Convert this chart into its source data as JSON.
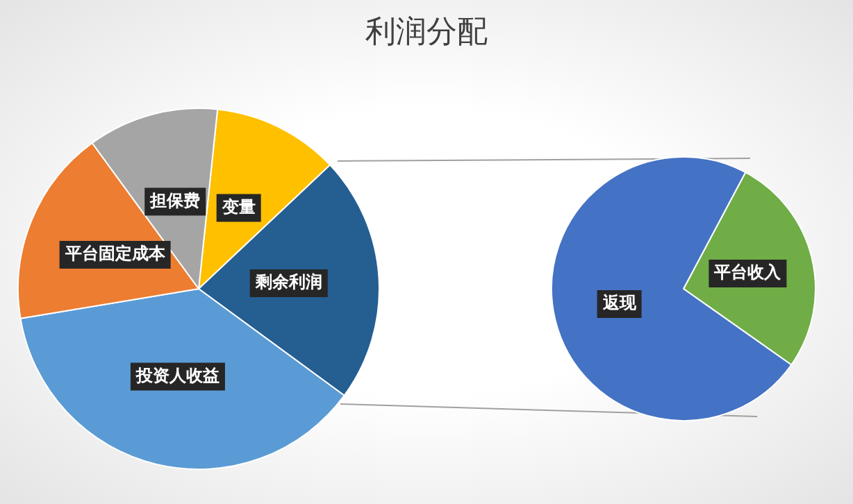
{
  "chart_data": [
    {
      "type": "pie",
      "title": "利润分配",
      "categories": [
        "变量",
        "剩余利润",
        "投资人收益",
        "平台固定成本",
        "担保费"
      ],
      "values": [
        11.3,
        22.1,
        37.3,
        17.6,
        11.7
      ],
      "colors": [
        "#ffc000",
        "#255e91",
        "#5b9bd5",
        "#ed7d31",
        "#a5a5a5"
      ]
    },
    {
      "type": "pie",
      "categories": [
        "平台收入",
        "返现"
      ],
      "values": [
        27,
        73
      ],
      "colors": [
        "#70ad47",
        "#4472c4"
      ]
    }
  ]
}
